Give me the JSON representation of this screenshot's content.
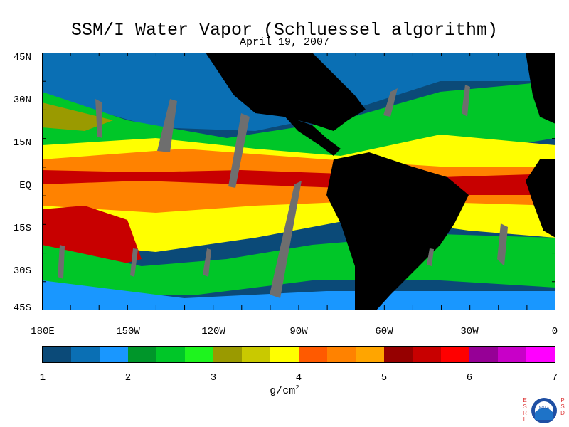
{
  "title": "SSM/I Water Vapor (Schluessel algorithm)",
  "subtitle": "April 19, 2007",
  "map": {
    "lat_labels": [
      "45N",
      "30N",
      "15N",
      "EQ",
      "15S",
      "30S",
      "45S"
    ],
    "lon_labels": [
      "180E",
      "150W",
      "120W",
      "90W",
      "60W",
      "30W",
      "0"
    ],
    "land_color": "#000000",
    "missing_swath_color": "#6e6e6e"
  },
  "colorbar": {
    "colors": [
      "#0b4a78",
      "#0a6fb4",
      "#1997ff",
      "#00962a",
      "#00c628",
      "#1ef41e",
      "#9a9a00",
      "#c9c900",
      "#ffff00",
      "#ff5a00",
      "#ff8200",
      "#ffa500",
      "#960000",
      "#c80000",
      "#ff0000",
      "#960096",
      "#c800c8",
      "#ff00ff"
    ],
    "tick_labels": [
      "1",
      "2",
      "3",
      "4",
      "5",
      "6",
      "7"
    ],
    "units": "g/cm",
    "units_superscript": "2"
  },
  "logo": {
    "left_letters": "ESRL",
    "right_letters": "PSD",
    "center_text": "NOAA"
  }
}
